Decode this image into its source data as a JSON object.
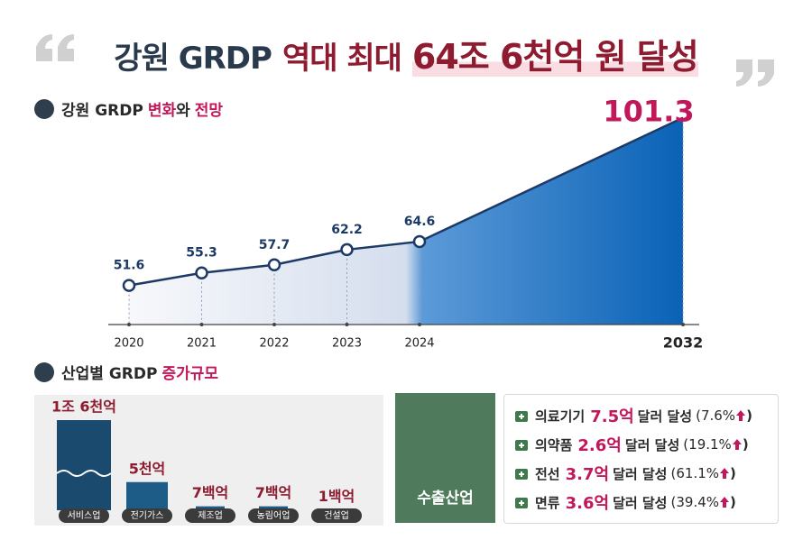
{
  "title_parts": [
    "강원 GRDP",
    "역대 최대",
    "64조 6천억 원 달성"
  ],
  "chart_data": [
    {
      "type": "line",
      "title_parts": [
        "강원 GRDP",
        "변화",
        "와",
        "전망"
      ],
      "categories": [
        "2020",
        "2021",
        "2022",
        "2023",
        "2024",
        "2032"
      ],
      "values": [
        51.6,
        55.3,
        57.7,
        62.2,
        64.6,
        101.3
      ],
      "color": "#1d3a66",
      "ylim": [
        40,
        102
      ]
    },
    {
      "type": "bar",
      "title_parts": [
        "산업별 GRDP",
        "증가규모"
      ],
      "categories": [
        "서비스업",
        "전기가스",
        "제조업",
        "농림어업",
        "건설업"
      ],
      "values": [
        16000,
        5000,
        700,
        700,
        100
      ],
      "value_labels": [
        "1조 6천억",
        "5천억",
        "7백억",
        "7백억",
        "1백억"
      ],
      "color": "#1d5c86",
      "ylim": [
        0,
        16000
      ]
    }
  ],
  "export": {
    "title": "수출산업",
    "items": [
      {
        "name": "의료기기",
        "amount": "7.5억",
        "suffix": "달러 달성",
        "growth": "(7.6%",
        "close": ")"
      },
      {
        "name": "의약품",
        "amount": "2.6억",
        "suffix": "달러 달성",
        "growth": "(19.1%",
        "close": ")"
      },
      {
        "name": "전선",
        "amount": "3.7억",
        "suffix": "달러 달성",
        "growth": "(61.1%",
        "close": ")"
      },
      {
        "name": "면류",
        "amount": "3.6억",
        "suffix": "달러 달성",
        "growth": "(39.4%",
        "close": ")"
      }
    ]
  }
}
